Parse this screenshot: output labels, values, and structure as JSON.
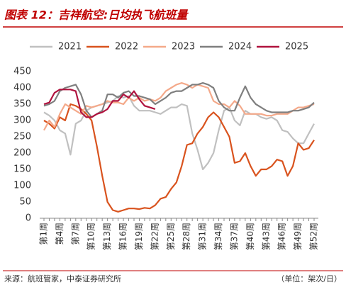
{
  "chart_data": {
    "type": "line",
    "title": "图表 12：吉祥航空:日均执飞航班量",
    "source": "来源：航班管家，中泰证券研究所",
    "unit": "（单位：架次/日）",
    "categories": [
      "第1周",
      null,
      null,
      "第4周",
      null,
      null,
      "第7周",
      null,
      null,
      "第10周",
      null,
      null,
      "第13周",
      null,
      null,
      "第16周",
      null,
      null,
      "第19周",
      null,
      null,
      "第22周",
      null,
      null,
      "第25周",
      null,
      null,
      "第28周",
      null,
      null,
      "第31周",
      null,
      null,
      "第34周",
      null,
      null,
      "第37周",
      null,
      null,
      "第40周",
      null,
      null,
      "第43周",
      null,
      null,
      "第46周",
      null,
      null,
      "第49周",
      null,
      null,
      "第52周"
    ],
    "ylim": [
      0,
      450
    ],
    "yticks": [
      0,
      50,
      100,
      150,
      200,
      250,
      300,
      350,
      400,
      450
    ],
    "series": [
      {
        "name": "2021",
        "color": "#c0c0c0",
        "values": [
          325,
          315,
          300,
          270,
          260,
          195,
          290,
          300,
          330,
          340,
          345,
          350,
          355,
          360,
          375,
          370,
          375,
          345,
          330,
          330,
          330,
          325,
          320,
          330,
          340,
          340,
          350,
          345,
          260,
          210,
          150,
          170,
          200,
          270,
          330,
          340,
          300,
          285,
          330,
          320,
          320,
          310,
          305,
          310,
          300,
          270,
          265,
          245,
          230,
          230,
          260,
          290
        ]
      },
      {
        "name": "2022",
        "color": "#d9531e",
        "values": [
          300,
          290,
          275,
          310,
          300,
          350,
          345,
          335,
          320,
          300,
          220,
          130,
          50,
          25,
          20,
          25,
          30,
          30,
          28,
          32,
          30,
          40,
          60,
          65,
          90,
          110,
          160,
          225,
          230,
          260,
          280,
          310,
          325,
          310,
          280,
          250,
          170,
          175,
          200,
          160,
          130,
          150,
          150,
          160,
          180,
          175,
          130,
          160,
          230,
          210,
          215,
          240
        ]
      },
      {
        "name": "2023",
        "color": "#f4a98a",
        "values": [
          270,
          300,
          280,
          320,
          350,
          340,
          330,
          320,
          345,
          340,
          345,
          350,
          360,
          355,
          355,
          350,
          370,
          360,
          370,
          360,
          365,
          360,
          370,
          390,
          400,
          410,
          415,
          410,
          400,
          410,
          405,
          400,
          360,
          350,
          350,
          340,
          360,
          345,
          320,
          320,
          320,
          320,
          315,
          315,
          320,
          320,
          320,
          330,
          340,
          340,
          345,
          350
        ]
      },
      {
        "name": "2024",
        "color": "#7f7f7f",
        "values": [
          345,
          350,
          360,
          390,
          400,
          405,
          410,
          380,
          330,
          310,
          320,
          330,
          380,
          380,
          370,
          385,
          390,
          375,
          375,
          370,
          365,
          350,
          360,
          370,
          385,
          390,
          390,
          400,
          410,
          410,
          415,
          410,
          400,
          360,
          340,
          330,
          330,
          370,
          405,
          370,
          350,
          340,
          330,
          325,
          325,
          325,
          325,
          330,
          330,
          335,
          340,
          355
        ]
      },
      {
        "name": "2025",
        "color": "#b0123e",
        "values": [
          350,
          355,
          385,
          395,
          395,
          395,
          390,
          325,
          310,
          310,
          320,
          325,
          335,
          360,
          360,
          380,
          370,
          390,
          365,
          345,
          340,
          335,
          null,
          null,
          null,
          null,
          null,
          null,
          null,
          null,
          null,
          null,
          null,
          null,
          null,
          null,
          null,
          null,
          null,
          null,
          null,
          null,
          null,
          null,
          null,
          null,
          null,
          null,
          null,
          null,
          null,
          null
        ]
      }
    ]
  }
}
